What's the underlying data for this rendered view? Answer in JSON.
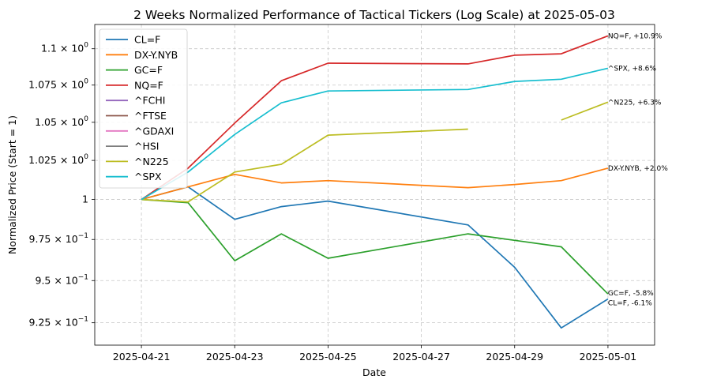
{
  "chart_data": {
    "type": "line",
    "title": "2 Weeks Normalized Performance of Tactical Tickers (Log Scale) at 2025-05-03",
    "xlabel": "Date",
    "ylabel": "Normalized Price (Start = 1)",
    "yscale": "log",
    "ylim": [
      0.912,
      1.117
    ],
    "xlim": [
      "2025-04-20",
      "2025-05-02"
    ],
    "grid": true,
    "legend_position": "top-left",
    "x_ticks": [
      "2025-04-21",
      "2025-04-23",
      "2025-04-25",
      "2025-04-27",
      "2025-04-29",
      "2025-05-01"
    ],
    "y_ticks": [
      {
        "value": 0.925,
        "mantissa": "9.25",
        "exponent": "−1"
      },
      {
        "value": 0.95,
        "mantissa": "9.5",
        "exponent": "−1"
      },
      {
        "value": 0.975,
        "mantissa": "9.75",
        "exponent": "−1"
      },
      {
        "value": 1.0,
        "mantissa": "",
        "exponent": ""
      },
      {
        "value": 1.025,
        "mantissa": "1.025",
        "exponent": "0"
      },
      {
        "value": 1.05,
        "mantissa": "1.05",
        "exponent": "0"
      },
      {
        "value": 1.075,
        "mantissa": "1.075",
        "exponent": "0"
      },
      {
        "value": 1.1,
        "mantissa": "1.1",
        "exponent": "0"
      }
    ],
    "y_tick_one_label": "1",
    "series": [
      {
        "name": "CL=F",
        "color": "#1f77b4",
        "points": [
          [
            "2025-04-21",
            1.0
          ],
          [
            "2025-04-22",
            1.008
          ],
          [
            "2025-04-23",
            0.9875
          ],
          [
            "2025-04-24",
            0.9955
          ],
          [
            "2025-04-25",
            0.999
          ],
          [
            "2025-04-28",
            0.984
          ],
          [
            "2025-04-29",
            0.958
          ],
          [
            "2025-04-30",
            0.922
          ],
          [
            "2025-05-01",
            0.939
          ]
        ],
        "annotation": "CL=F, -6.1%"
      },
      {
        "name": "DX-Y.NYB",
        "color": "#ff7f0e",
        "points": [
          [
            "2025-04-21",
            1.0
          ],
          [
            "2025-04-22",
            1.008
          ],
          [
            "2025-04-23",
            1.016
          ],
          [
            "2025-04-24",
            1.0105
          ],
          [
            "2025-04-25",
            1.012
          ],
          [
            "2025-04-28",
            1.0075
          ],
          [
            "2025-04-29",
            1.0095
          ],
          [
            "2025-04-30",
            1.012
          ],
          [
            "2025-05-01",
            1.02
          ]
        ],
        "annotation": "DX-Y.NYB, +2.0%"
      },
      {
        "name": "GC=F",
        "color": "#2ca02c",
        "points": [
          [
            "2025-04-21",
            1.0
          ],
          [
            "2025-04-22",
            0.998
          ],
          [
            "2025-04-23",
            0.962
          ],
          [
            "2025-04-24",
            0.9785
          ],
          [
            "2025-04-25",
            0.9635
          ],
          [
            "2025-04-28",
            0.9785
          ],
          [
            "2025-04-29",
            0.9745
          ],
          [
            "2025-04-30",
            0.9705
          ],
          [
            "2025-05-01",
            0.942
          ]
        ],
        "annotation": "GC=F, -5.8%"
      },
      {
        "name": "NQ=F",
        "color": "#d62728",
        "points": [
          [
            "2025-04-21",
            1.0
          ],
          [
            "2025-04-22",
            1.02
          ],
          [
            "2025-04-23",
            1.0495
          ],
          [
            "2025-04-24",
            1.078
          ],
          [
            "2025-04-25",
            1.09
          ],
          [
            "2025-04-28",
            1.0895
          ],
          [
            "2025-04-29",
            1.0955
          ],
          [
            "2025-04-30",
            1.0965
          ],
          [
            "2025-05-01",
            1.109
          ]
        ],
        "annotation": "NQ=F, +10.9%"
      },
      {
        "name": "^FCHI",
        "color": "#9467bd",
        "points": [],
        "annotation": ""
      },
      {
        "name": "^FTSE",
        "color": "#8c564b",
        "points": [],
        "annotation": ""
      },
      {
        "name": "^GDAXI",
        "color": "#e377c2",
        "points": [],
        "annotation": ""
      },
      {
        "name": "^HSI",
        "color": "#7f7f7f",
        "points": [],
        "annotation": ""
      },
      {
        "name": "^N225",
        "color": "#bcbd22",
        "points": [
          [
            "2025-04-21",
            1.0
          ],
          [
            "2025-04-22",
            0.9985
          ],
          [
            "2025-04-23",
            1.0175
          ],
          [
            "2025-04-24",
            1.0225
          ],
          [
            "2025-04-25",
            1.0415
          ],
          [
            "2025-04-28",
            1.0455
          ],
          null,
          [
            "2025-04-30",
            1.0515
          ],
          [
            "2025-05-01",
            1.0635
          ]
        ],
        "annotation": "^N225, +6.3%"
      },
      {
        "name": "^SPX",
        "color": "#17becf",
        "points": [
          [
            "2025-04-21",
            1.0
          ],
          [
            "2025-04-22",
            1.0175
          ],
          [
            "2025-04-23",
            1.042
          ],
          [
            "2025-04-24",
            1.063
          ],
          [
            "2025-04-25",
            1.071
          ],
          [
            "2025-04-28",
            1.072
          ],
          [
            "2025-04-29",
            1.0775
          ],
          [
            "2025-04-30",
            1.079
          ],
          [
            "2025-05-01",
            1.0865
          ]
        ],
        "annotation": "^SPX, +8.6%"
      }
    ]
  }
}
